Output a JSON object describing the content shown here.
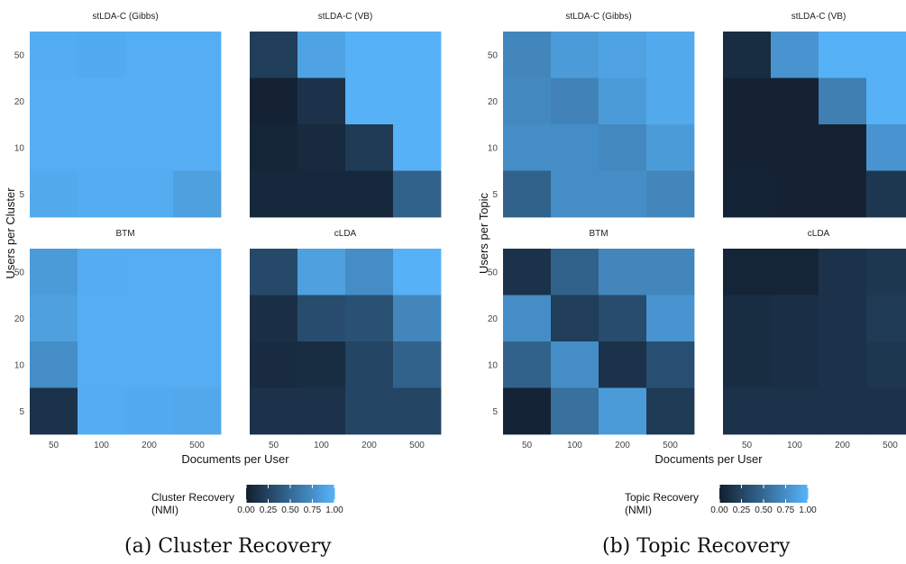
{
  "colors": {
    "low": "#132132",
    "high": "#56B1F7"
  },
  "figures": [
    {
      "ylabel": "Users per Cluster",
      "xlabel": "Documents per User",
      "caption": "(a) Cluster Recovery",
      "legend": {
        "title_line1": "Cluster Recovery",
        "title_line2": "(NMI)",
        "ticks": [
          "0.00",
          "0.25",
          "0.50",
          "0.75",
          "1.00"
        ]
      }
    },
    {
      "ylabel": "Users per Topic",
      "xlabel": "Documents per User",
      "caption": "(b) Topic Recovery",
      "legend": {
        "title_line1": "Topic Recovery",
        "title_line2": "(NMI)",
        "ticks": [
          "0.00",
          "0.25",
          "0.50",
          "0.75",
          "1.00"
        ]
      }
    }
  ],
  "chart_data": [
    {
      "type": "heatmap",
      "figure": "(a) Cluster Recovery",
      "x_categories": [
        "50",
        "100",
        "200",
        "500"
      ],
      "y_categories": [
        "50",
        "20",
        "10",
        "5"
      ],
      "xlabel": "Documents per User",
      "ylabel": "Users per Cluster",
      "value_range": [
        0,
        1
      ],
      "legend_title": "Cluster Recovery (NMI)",
      "panels": [
        {
          "title": "stLDA-C (Gibbs)",
          "values": [
            [
              0.97,
              0.96,
              0.98,
              0.98
            ],
            [
              0.98,
              0.98,
              0.98,
              0.98
            ],
            [
              0.98,
              0.98,
              0.98,
              0.98
            ],
            [
              0.95,
              0.97,
              0.97,
              0.88
            ]
          ]
        },
        {
          "title": "stLDA-C (VB)",
          "values": [
            [
              0.2,
              0.9,
              1.0,
              1.0
            ],
            [
              0.01,
              0.12,
              1.0,
              1.0
            ],
            [
              0.03,
              0.06,
              0.18,
              1.0
            ],
            [
              0.05,
              0.05,
              0.05,
              0.45
            ]
          ]
        },
        {
          "title": "BTM",
          "values": [
            [
              0.85,
              0.97,
              0.98,
              0.98
            ],
            [
              0.88,
              0.98,
              0.98,
              0.98
            ],
            [
              0.75,
              0.98,
              0.98,
              0.98
            ],
            [
              0.12,
              0.97,
              0.96,
              0.94
            ]
          ]
        },
        {
          "title": "cLDA",
          "values": [
            [
              0.28,
              0.88,
              0.75,
              1.0
            ],
            [
              0.1,
              0.3,
              0.33,
              0.7
            ],
            [
              0.07,
              0.08,
              0.25,
              0.45
            ],
            [
              0.12,
              0.12,
              0.25,
              0.25
            ]
          ]
        }
      ]
    },
    {
      "type": "heatmap",
      "figure": "(b) Topic Recovery",
      "x_categories": [
        "50",
        "100",
        "200",
        "500"
      ],
      "y_categories": [
        "50",
        "20",
        "10",
        "5"
      ],
      "xlabel": "Documents per User",
      "ylabel": "Users per Topic",
      "value_range": [
        0,
        1
      ],
      "legend_title": "Topic Recovery (NMI)",
      "panels": [
        {
          "title": "stLDA-C (Gibbs)",
          "values": [
            [
              0.7,
              0.85,
              0.9,
              0.95
            ],
            [
              0.72,
              0.68,
              0.85,
              0.95
            ],
            [
              0.75,
              0.75,
              0.72,
              0.85
            ],
            [
              0.45,
              0.75,
              0.75,
              0.7
            ]
          ]
        },
        {
          "title": "stLDA-C (VB)",
          "values": [
            [
              0.08,
              0.8,
              1.0,
              1.0
            ],
            [
              0.01,
              0.01,
              0.65,
              1.0
            ],
            [
              0.01,
              0.01,
              0.01,
              0.8
            ],
            [
              0.02,
              0.01,
              0.01,
              0.15
            ]
          ]
        },
        {
          "title": "BTM",
          "values": [
            [
              0.12,
              0.45,
              0.7,
              0.7
            ],
            [
              0.75,
              0.2,
              0.3,
              0.8
            ],
            [
              0.45,
              0.75,
              0.12,
              0.32
            ],
            [
              0.02,
              0.55,
              0.85,
              0.18
            ]
          ]
        },
        {
          "title": "cLDA",
          "values": [
            [
              0.03,
              0.03,
              0.12,
              0.15
            ],
            [
              0.08,
              0.1,
              0.12,
              0.18
            ],
            [
              0.08,
              0.1,
              0.12,
              0.15
            ],
            [
              0.12,
              0.12,
              0.12,
              0.12
            ]
          ]
        }
      ]
    }
  ]
}
